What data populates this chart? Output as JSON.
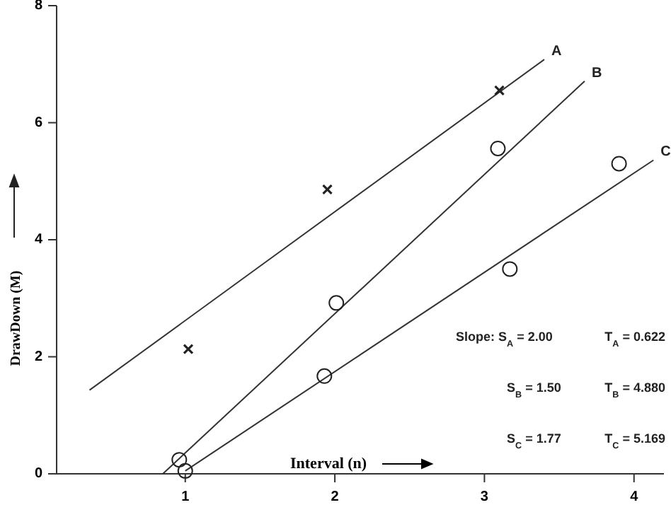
{
  "chart_data": {
    "type": "scatter",
    "xlabel": "Interval (n)",
    "ylabel": "DrawDown (M)",
    "xlim": [
      0.14,
      4.2
    ],
    "ylim": [
      0,
      8
    ],
    "xticks": [
      1,
      2,
      3,
      4
    ],
    "yticks": [
      0,
      2,
      4,
      6,
      8
    ],
    "grid": false,
    "legend": false,
    "series": [
      {
        "name": "A",
        "type": "line",
        "color": "#333333",
        "x": [
          0.36,
          3.4
        ],
        "values": [
          1.43,
          7.08
        ]
      },
      {
        "name": "B",
        "type": "line",
        "color": "#333333",
        "x": [
          0.85,
          3.67
        ],
        "values": [
          0,
          6.71
        ]
      },
      {
        "name": "C",
        "type": "line",
        "color": "#333333",
        "x": [
          1.0,
          4.13
        ],
        "values": [
          0.05,
          5.36
        ]
      },
      {
        "marker": "cross",
        "color": "#222222",
        "x": [
          1.02,
          1.95,
          3.1
        ],
        "values": [
          2.13,
          4.86,
          6.55
        ]
      },
      {
        "marker": "circle",
        "color": "#222222",
        "x": [
          0.96,
          2.01,
          3.09
        ],
        "values": [
          0.24,
          2.92,
          5.56
        ]
      },
      {
        "marker": "circle",
        "color": "#222222",
        "x": [
          1.0,
          1.93,
          3.17,
          3.9
        ],
        "values": [
          0.05,
          1.67,
          3.5,
          5.3
        ]
      }
    ],
    "annotations": [
      "Slope: S$_{A}$ = 2.00",
      "T$_{A}$ = 0.622",
      "S$_{B}$ = 1.50",
      "T$_{B}$ = 4.880",
      "S$_{C}$ = 1.77",
      "T$_{C}$ = 5.169"
    ]
  }
}
